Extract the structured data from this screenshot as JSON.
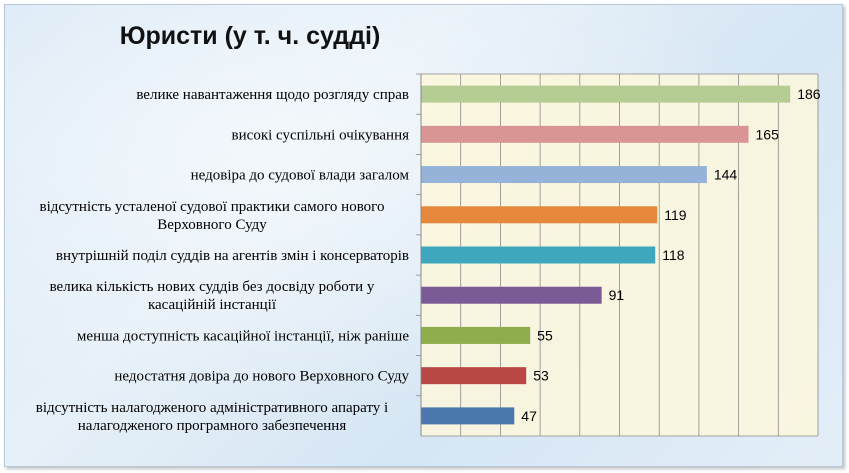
{
  "chart_data": {
    "type": "bar",
    "orientation": "horizontal",
    "title": "Юристи (у т. ч. судді)",
    "categories": [
      [
        "велике навантаження щодо розгляду справ"
      ],
      [
        "високі суспільні очікування"
      ],
      [
        "недовіра до судової влади загалом"
      ],
      [
        "відсутність усталеної судової практики самого нового",
        "Верховного Суду"
      ],
      [
        "внутрішній поділ суддів на агентів змін і консерваторів"
      ],
      [
        "велика кількість нових суддів без досвіду роботи у",
        "касаційній інстанції"
      ],
      [
        "менша доступність касаційної інстанції, ніж раніше"
      ],
      [
        "недостатня довіра до нового Верховного Суду"
      ],
      [
        "відсутність налагодженого адміністративного апарату і",
        "налагодженого програмного забезпечення"
      ]
    ],
    "values": [
      186,
      165,
      144,
      119,
      118,
      91,
      55,
      53,
      47
    ],
    "colors": [
      "#b5cc92",
      "#d99594",
      "#95b2d9",
      "#e6883c",
      "#3ea7bd",
      "#7a5b95",
      "#8fad4d",
      "#b84746",
      "#4a77ad"
    ],
    "xlim": [
      0,
      200
    ],
    "grid": true,
    "legend": "none"
  }
}
